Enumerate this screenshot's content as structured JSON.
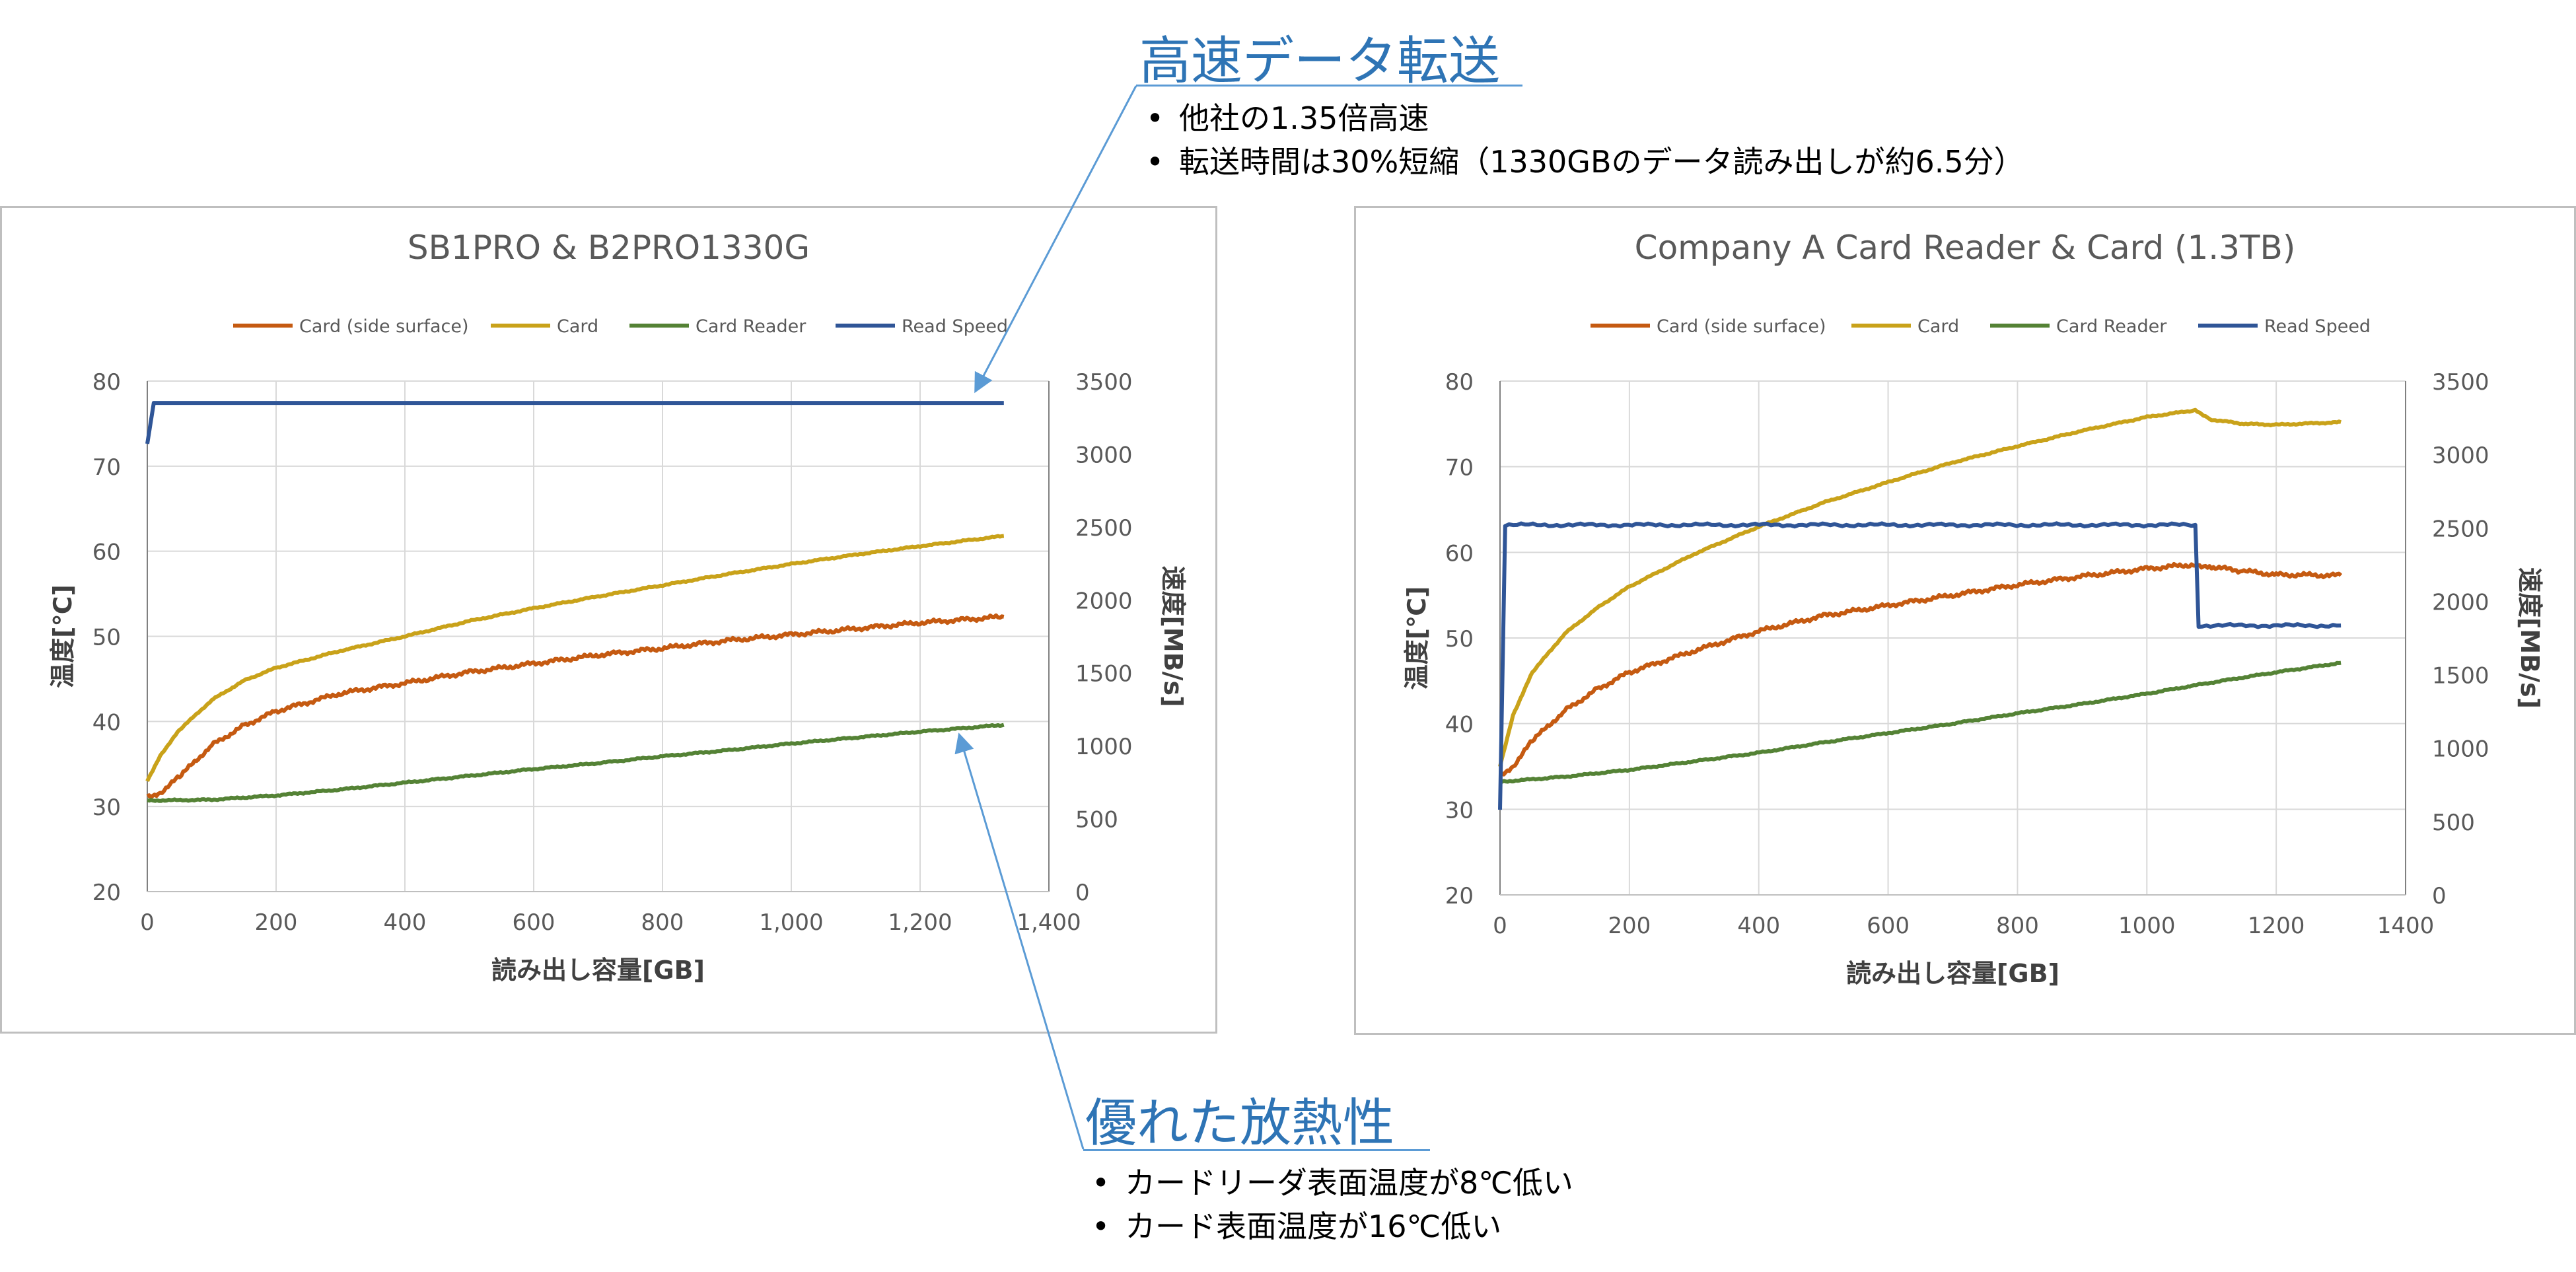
{
  "callouts": {
    "speed": {
      "title": "高速データ転送",
      "bullets": [
        "他社の1.35倍高速",
        "転送時間は30%短縮（1330GBのデータ読み出しが約6.5分）"
      ]
    },
    "heat": {
      "title": "優れた放熱性",
      "bullets": [
        "カードリーダ表面温度が8℃低い",
        "カード表面温度が16℃低い"
      ]
    }
  },
  "colors": {
    "card_side": "#c55a11",
    "card": "#c9a21a",
    "card_reader": "#548235",
    "read_speed": "#2f5597",
    "callout": "#2e74b5",
    "grid": "#d9d9d9"
  },
  "chart_data": [
    {
      "type": "line",
      "title": "SB1PRO & B2PRO1330G",
      "xlabel": "読み出し容量[GB]",
      "ylabel": "温度[℃]",
      "y2label": "速度[MB/s]",
      "xlim": [
        0,
        1400
      ],
      "ylim": [
        20,
        80
      ],
      "y2lim": [
        0,
        3500
      ],
      "xticks": [
        0,
        200,
        400,
        600,
        800,
        1000,
        1200,
        1400
      ],
      "xtick_labels": [
        "0",
        "200",
        "400",
        "600",
        "800",
        "1,000",
        "1,200",
        "1,400"
      ],
      "yticks": [
        20,
        30,
        40,
        50,
        60,
        70,
        80
      ],
      "y2ticks": [
        0,
        500,
        1000,
        1500,
        2000,
        2500,
        3000,
        3500
      ],
      "grid": true,
      "legend": "top",
      "series": [
        {
          "name": "Card (side surface)",
          "color_key": "card_side",
          "axis": "left",
          "x": [
            0,
            20,
            50,
            100,
            150,
            200,
            300,
            400,
            500,
            600,
            700,
            800,
            900,
            1000,
            1100,
            1200,
            1330
          ],
          "y": [
            31.2,
            31.6,
            33.5,
            37.2,
            39.5,
            41.2,
            43.3,
            44.5,
            45.8,
            46.8,
            47.8,
            48.6,
            49.5,
            50.2,
            50.9,
            51.6,
            52.3
          ]
        },
        {
          "name": "Card",
          "color_key": "card",
          "axis": "left",
          "x": [
            0,
            20,
            50,
            100,
            150,
            200,
            300,
            400,
            500,
            600,
            700,
            800,
            900,
            1000,
            1100,
            1200,
            1330
          ],
          "y": [
            33.0,
            36.0,
            39.0,
            42.5,
            44.8,
            46.3,
            48.3,
            50.0,
            51.8,
            53.3,
            54.7,
            56.0,
            57.3,
            58.5,
            59.6,
            60.6,
            61.8
          ]
        },
        {
          "name": "Card Reader",
          "color_key": "card_reader",
          "axis": "left",
          "x": [
            0,
            100,
            200,
            300,
            400,
            500,
            600,
            700,
            800,
            900,
            1000,
            1100,
            1200,
            1330
          ],
          "y": [
            30.7,
            30.8,
            31.3,
            32.0,
            32.8,
            33.6,
            34.4,
            35.1,
            35.9,
            36.6,
            37.4,
            38.1,
            38.8,
            39.6
          ]
        },
        {
          "name": "Read Speed",
          "color_key": "read_speed",
          "axis": "right",
          "x": [
            0,
            10,
            1330
          ],
          "y": [
            3070,
            3350,
            3350
          ]
        }
      ]
    },
    {
      "type": "line",
      "title": "Company A Card Reader & Card (1.3TB)",
      "xlabel": "読み出し容量[GB]",
      "ylabel": "温度[℃]",
      "y2label": "速度[MB/s]",
      "xlim": [
        0,
        1400
      ],
      "ylim": [
        20,
        80
      ],
      "y2lim": [
        0,
        3500
      ],
      "xticks": [
        0,
        200,
        400,
        600,
        800,
        1000,
        1200,
        1400
      ],
      "xtick_labels": [
        "0",
        "200",
        "400",
        "600",
        "800",
        "1000",
        "1200",
        "1400"
      ],
      "yticks": [
        20,
        30,
        40,
        50,
        60,
        70,
        80
      ],
      "y2ticks": [
        0,
        500,
        1000,
        1500,
        2000,
        2500,
        3000,
        3500
      ],
      "grid": true,
      "legend": "top",
      "series": [
        {
          "name": "Card (side surface)",
          "color_key": "card_side",
          "axis": "left",
          "x": [
            0,
            20,
            50,
            100,
            150,
            200,
            300,
            400,
            500,
            600,
            700,
            800,
            900,
            1000,
            1075,
            1100,
            1150,
            1200,
            1300
          ],
          "y": [
            34.0,
            35.0,
            38.0,
            41.5,
            44.0,
            46.0,
            48.5,
            50.8,
            52.6,
            53.8,
            55.0,
            56.2,
            57.2,
            58.1,
            58.6,
            58.3,
            57.8,
            57.4,
            57.3
          ]
        },
        {
          "name": "Card",
          "color_key": "card",
          "axis": "left",
          "x": [
            0,
            20,
            50,
            100,
            150,
            200,
            300,
            400,
            500,
            600,
            700,
            800,
            900,
            1000,
            1075,
            1100,
            1150,
            1200,
            1300
          ],
          "y": [
            35.0,
            41.0,
            46.0,
            50.5,
            53.5,
            56.0,
            59.8,
            63.0,
            65.8,
            68.2,
            70.5,
            72.4,
            74.2,
            75.8,
            76.6,
            75.5,
            75.0,
            74.9,
            75.2
          ]
        },
        {
          "name": "Card Reader",
          "color_key": "card_reader",
          "axis": "left",
          "x": [
            0,
            100,
            200,
            300,
            400,
            500,
            600,
            700,
            800,
            900,
            1000,
            1100,
            1200,
            1300
          ],
          "y": [
            33.2,
            33.8,
            34.6,
            35.6,
            36.6,
            37.8,
            38.9,
            40.0,
            41.2,
            42.3,
            43.5,
            44.8,
            46.0,
            47.1
          ]
        },
        {
          "name": "Read Speed",
          "color_key": "read_speed",
          "axis": "right",
          "x": [
            0,
            8,
            1075,
            1080,
            1300
          ],
          "y": [
            580,
            2520,
            2520,
            1835,
            1835
          ]
        }
      ]
    }
  ]
}
